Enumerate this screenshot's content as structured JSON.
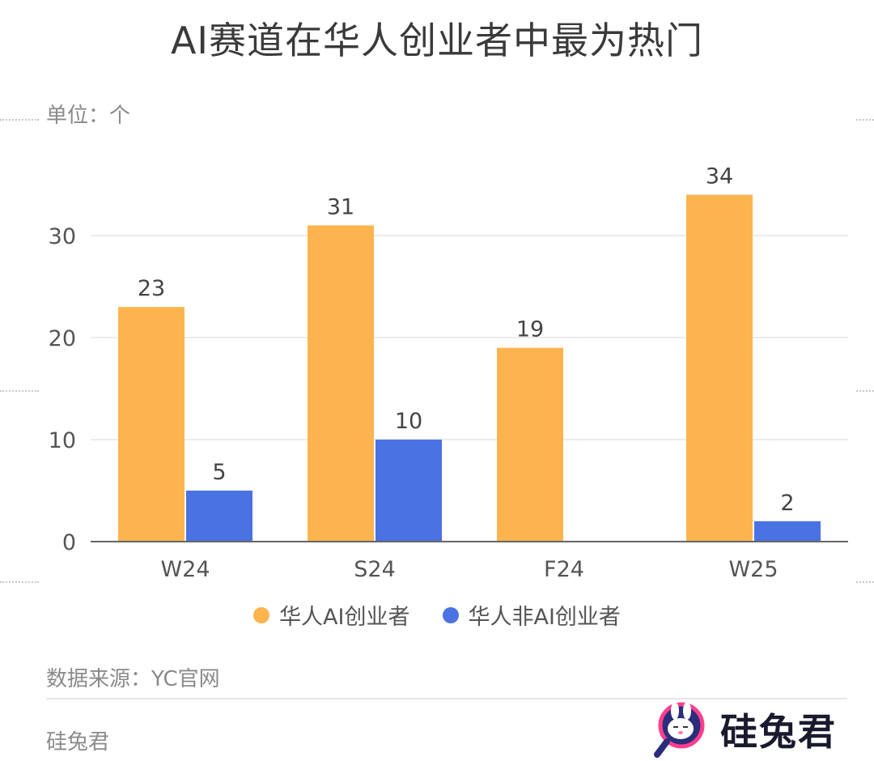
{
  "title": "AI赛道在华人创业者中最为热门",
  "unit_label": "单位：个",
  "source_label": "数据来源：YC官网",
  "author_label": "硅兔君",
  "brand": {
    "name": "硅兔君",
    "icon": "rabbit-magnifier-logo-icon"
  },
  "colors": {
    "series1": "#FDB44E",
    "series2": "#4A72E3",
    "grid": "#e6e6e6",
    "axis": "#666666"
  },
  "chart_data": {
    "type": "bar",
    "title": "AI赛道在华人创业者中最为热门",
    "ylabel": "单位：个",
    "categories": [
      "W24",
      "S24",
      "F24",
      "W25"
    ],
    "series": [
      {
        "name": "华人AI创业者",
        "values": [
          23,
          31,
          19,
          34
        ],
        "color": "#FDB44E"
      },
      {
        "name": "华人非AI创业者",
        "values": [
          5,
          10,
          null,
          2
        ],
        "color": "#4A72E3"
      }
    ],
    "ylim": [
      0,
      37
    ],
    "yticks": [
      0,
      10,
      20,
      30
    ],
    "grid": true,
    "legend": "bottom-center",
    "data_labels": true
  }
}
